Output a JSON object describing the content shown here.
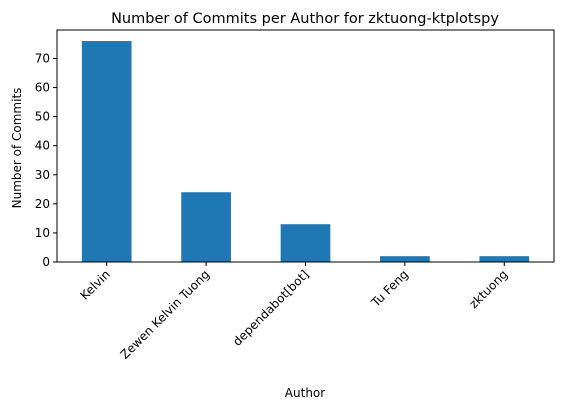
{
  "chart_data": {
    "type": "bar",
    "title": "Number of Commits per Author for zktuong-ktplotspy",
    "xlabel": "Author",
    "ylabel": "Number of Commits",
    "categories": [
      "Kelvin",
      "Zewen Kelvin Tuong",
      "dependabot[bot]",
      "Tu Feng",
      "zktuong"
    ],
    "values": [
      76,
      24,
      13,
      2,
      2
    ],
    "ylim": [
      0,
      79.8
    ],
    "yticks": [
      0,
      10,
      20,
      30,
      40,
      50,
      60,
      70
    ],
    "grid": false,
    "legend": "none",
    "colors": {
      "bar": "#1f77b4",
      "axis": "#000000",
      "background": "#ffffff"
    }
  }
}
